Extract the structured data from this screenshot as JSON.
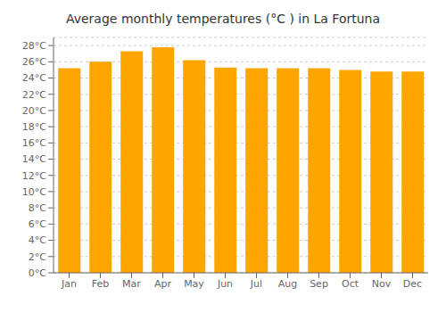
{
  "chart_data": {
    "type": "bar",
    "title": "Average monthly temperatures (°C ) in La Fortuna",
    "categories": [
      "Jan",
      "Feb",
      "Mar",
      "Apr",
      "May",
      "Jun",
      "Jul",
      "Aug",
      "Sep",
      "Oct",
      "Nov",
      "Dec"
    ],
    "values": [
      25.2,
      26.0,
      27.3,
      27.8,
      26.2,
      25.3,
      25.2,
      25.2,
      25.2,
      25.0,
      24.8,
      24.8
    ],
    "color": "#FFA500",
    "ylim": [
      0,
      29
    ],
    "yticks": [
      {
        "value": 0,
        "label": "0°C"
      },
      {
        "value": 2,
        "label": "2°C"
      },
      {
        "value": 4,
        "label": "4°C"
      },
      {
        "value": 6,
        "label": "6°C"
      },
      {
        "value": 8,
        "label": "8°C"
      },
      {
        "value": 10,
        "label": "10°C"
      },
      {
        "value": 12,
        "label": "12°C"
      },
      {
        "value": 14,
        "label": "14°C"
      },
      {
        "value": 16,
        "label": "16°C"
      },
      {
        "value": 18,
        "label": "18°C"
      },
      {
        "value": 20,
        "label": "20°C"
      },
      {
        "value": 22,
        "label": "22°C"
      },
      {
        "value": 24,
        "label": "24°C"
      },
      {
        "value": 26,
        "label": "26°C"
      },
      {
        "value": 28,
        "label": "28°C"
      }
    ],
    "grid": true
  }
}
